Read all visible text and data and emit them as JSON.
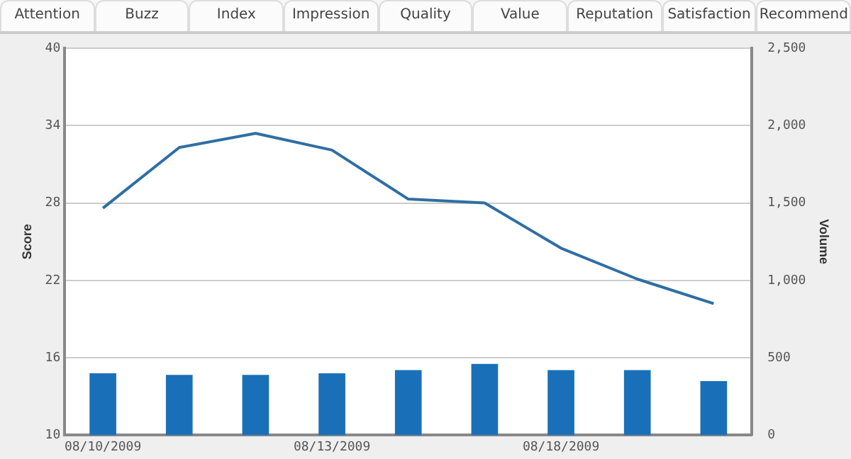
{
  "chart_data": {
    "type": "bar",
    "ylabel": "Score",
    "y2label": "Volume",
    "annotations": [
      "Attention",
      "Buzz",
      "Index",
      "Impression",
      "Quality",
      "Value",
      "Reputation",
      "Satisfaction",
      "Recommend"
    ],
    "categories": [
      "08/10/2009",
      null,
      null,
      "08/13/2009",
      null,
      null,
      "08/18/2009",
      null,
      null
    ],
    "series": [
      {
        "type": "line",
        "color": "#2f6ea3",
        "axis": "y",
        "values": [
          27.6,
          32.3,
          33.4,
          32.1,
          28.3,
          28.0,
          24.5,
          22.1,
          20.2
        ]
      },
      {
        "color": "#1a70b8",
        "axis": "y2",
        "values": [
          400,
          390,
          390,
          400,
          420,
          460,
          420,
          420,
          350
        ]
      }
    ],
    "ylim": [
      10,
      40
    ],
    "yticks": [
      10,
      16,
      22,
      28,
      34,
      40
    ],
    "y2lim": [
      0,
      2500
    ],
    "y2ticks": [
      0,
      500,
      {
        "value": 1000,
        "label": "1,000"
      },
      {
        "value": 1500,
        "label": "1,500"
      },
      {
        "value": 2000,
        "label": "2,000"
      },
      {
        "value": 2500,
        "label": "2,500"
      }
    ],
    "grid": "y",
    "legend": false,
    "marker": "none"
  }
}
